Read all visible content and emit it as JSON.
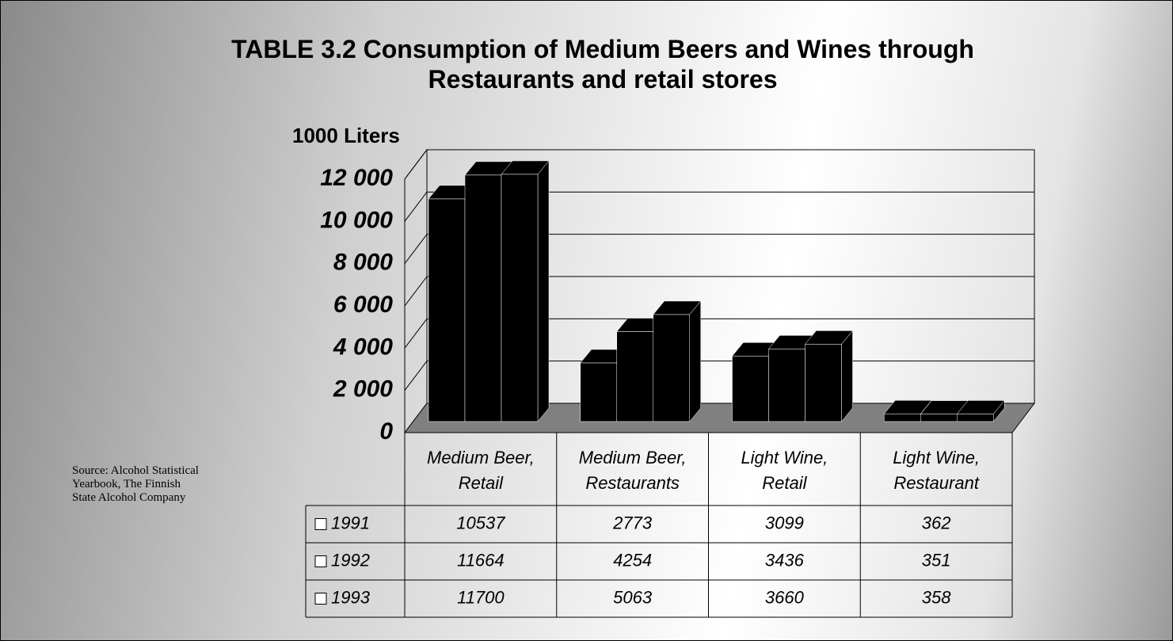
{
  "chart_data": {
    "type": "bar3d",
    "title": "TABLE 3.2 Consumption of Medium Beers and Wines through Restaurants and retail stores",
    "y_axis_label": "1000 Liters",
    "source": "Source: Alcohol Statistical Yearbook, The Finnish State Alcohol Company",
    "categories": [
      "Medium Beer, Retail",
      "Medium Beer, Restaurants",
      "Light Wine, Retail",
      "Light Wine, Restaurant"
    ],
    "series": [
      {
        "name": "1991",
        "color": "#000000",
        "values": [
          10537,
          2773,
          3099,
          362
        ]
      },
      {
        "name": "1992",
        "color": "#000000",
        "values": [
          11664,
          4254,
          3436,
          351
        ]
      },
      {
        "name": "1993",
        "color": "#000000",
        "values": [
          11700,
          5063,
          3660,
          358
        ]
      }
    ],
    "ylim": [
      0,
      12000
    ],
    "yticks": [
      0,
      {
        "value": 2000,
        "label": "2 000"
      },
      {
        "value": 4000,
        "label": "4 000"
      },
      {
        "value": 6000,
        "label": "6 000"
      },
      {
        "value": 8000,
        "label": "8 000"
      },
      {
        "value": 10000,
        "label": "10 000"
      },
      {
        "value": 12000,
        "label": "12 000"
      }
    ],
    "grid": true
  }
}
